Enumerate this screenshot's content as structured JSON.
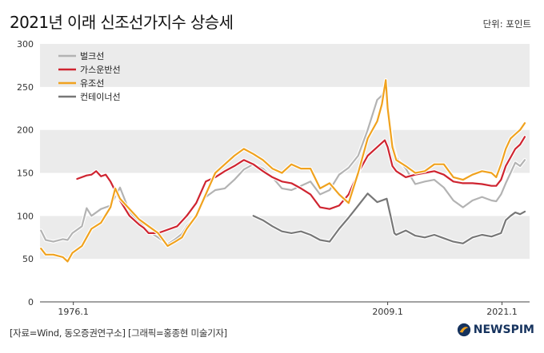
{
  "header": {
    "title": "2021년 이래 신조선가지수 상승세",
    "unit_label": "단위: 포인트"
  },
  "footer": {
    "source": "[자료=Wind, 동오증권연구소] [그래픽=홍종현 미술기자]",
    "brand": "NEWSPIM"
  },
  "chart_data": {
    "type": "line",
    "title": "2021년 이래 신조선가지수 상승세",
    "xlabel": "",
    "ylabel": "",
    "xlim": [
      1972.6,
      2024.0
    ],
    "ylim": [
      0,
      300
    ],
    "yticks": [
      0,
      50,
      100,
      150,
      200,
      250,
      300
    ],
    "xtick_labels": [
      {
        "x": 1976.1,
        "label": "1976.1"
      },
      {
        "x": 2009.1,
        "label": "2009.1"
      },
      {
        "x": 2021.1,
        "label": "2021.1"
      }
    ],
    "grid": "alternating horizontal bands",
    "legend_position": "top-left",
    "series": [
      {
        "name": "벌크선",
        "color": "#b3b3b3",
        "points": [
          [
            1972.7,
            83
          ],
          [
            1973.2,
            72
          ],
          [
            1974.0,
            70
          ],
          [
            1975.0,
            73
          ],
          [
            1975.5,
            72
          ],
          [
            1976.0,
            80
          ],
          [
            1977.0,
            88
          ],
          [
            1977.5,
            109
          ],
          [
            1978.0,
            100
          ],
          [
            1979.0,
            108
          ],
          [
            1980.0,
            112
          ],
          [
            1981.0,
            133
          ],
          [
            1982.0,
            105
          ],
          [
            1983.0,
            93
          ],
          [
            1984.0,
            82
          ],
          [
            1985.0,
            75
          ],
          [
            1986.0,
            67
          ],
          [
            1986.8,
            73
          ],
          [
            1987.5,
            79
          ],
          [
            1988.0,
            88
          ],
          [
            1989.0,
            100
          ],
          [
            1990.0,
            122
          ],
          [
            1991.0,
            130
          ],
          [
            1992.0,
            132
          ],
          [
            1993.0,
            142
          ],
          [
            1994.0,
            154
          ],
          [
            1995.0,
            160
          ],
          [
            1996.0,
            155
          ],
          [
            1997.0,
            145
          ],
          [
            1998.0,
            132
          ],
          [
            1999.0,
            130
          ],
          [
            2000.0,
            135
          ],
          [
            2001.0,
            140
          ],
          [
            2002.0,
            125
          ],
          [
            2003.0,
            130
          ],
          [
            2004.0,
            148
          ],
          [
            2005.0,
            156
          ],
          [
            2006.0,
            170
          ],
          [
            2007.0,
            200
          ],
          [
            2008.0,
            235
          ],
          [
            2008.5,
            240
          ],
          [
            2008.8,
            250
          ],
          [
            2009.1,
            228
          ],
          [
            2009.6,
            185
          ],
          [
            2010.0,
            168
          ],
          [
            2011.0,
            155
          ],
          [
            2012.0,
            137
          ],
          [
            2013.0,
            140
          ],
          [
            2014.0,
            142
          ],
          [
            2015.0,
            133
          ],
          [
            2016.0,
            118
          ],
          [
            2017.0,
            110
          ],
          [
            2018.0,
            118
          ],
          [
            2019.0,
            122
          ],
          [
            2020.0,
            118
          ],
          [
            2020.5,
            117
          ],
          [
            2021.0,
            125
          ],
          [
            2021.5,
            138
          ],
          [
            2022.0,
            150
          ],
          [
            2022.5,
            162
          ],
          [
            2023.0,
            158
          ],
          [
            2023.5,
            165
          ]
        ]
      },
      {
        "name": "가스운반선",
        "color": "#cf2430",
        "points": [
          [
            1976.5,
            143
          ],
          [
            1977.5,
            147
          ],
          [
            1978.0,
            148
          ],
          [
            1978.5,
            152
          ],
          [
            1979.0,
            146
          ],
          [
            1979.5,
            148
          ],
          [
            1980.0,
            140
          ],
          [
            1981.0,
            118
          ],
          [
            1982.0,
            100
          ],
          [
            1983.0,
            90
          ],
          [
            1983.5,
            86
          ],
          [
            1984.0,
            80
          ],
          [
            1985.0,
            80
          ],
          [
            1986.0,
            84
          ],
          [
            1987.0,
            88
          ],
          [
            1988.0,
            100
          ],
          [
            1989.0,
            115
          ],
          [
            1990.0,
            140
          ],
          [
            1991.0,
            145
          ],
          [
            1992.0,
            152
          ],
          [
            1993.0,
            158
          ],
          [
            1994.0,
            165
          ],
          [
            1995.0,
            160
          ],
          [
            1996.0,
            152
          ],
          [
            1997.0,
            145
          ],
          [
            1998.0,
            140
          ],
          [
            1999.0,
            138
          ],
          [
            2000.0,
            132
          ],
          [
            2001.0,
            125
          ],
          [
            2002.0,
            110
          ],
          [
            2003.0,
            108
          ],
          [
            2004.0,
            112
          ],
          [
            2005.0,
            125
          ],
          [
            2006.0,
            150
          ],
          [
            2007.0,
            170
          ],
          [
            2008.0,
            180
          ],
          [
            2008.8,
            188
          ],
          [
            2009.1,
            180
          ],
          [
            2009.6,
            158
          ],
          [
            2010.0,
            152
          ],
          [
            2011.0,
            145
          ],
          [
            2012.0,
            148
          ],
          [
            2013.0,
            150
          ],
          [
            2014.0,
            152
          ],
          [
            2015.0,
            148
          ],
          [
            2016.0,
            140
          ],
          [
            2017.0,
            138
          ],
          [
            2018.0,
            138
          ],
          [
            2019.0,
            137
          ],
          [
            2020.0,
            135
          ],
          [
            2020.5,
            135
          ],
          [
            2021.0,
            142
          ],
          [
            2021.5,
            158
          ],
          [
            2022.0,
            168
          ],
          [
            2022.5,
            178
          ],
          [
            2023.0,
            183
          ],
          [
            2023.5,
            192
          ]
        ]
      },
      {
        "name": "유조선",
        "color": "#f0a21e",
        "points": [
          [
            1972.7,
            62
          ],
          [
            1973.2,
            55
          ],
          [
            1974.0,
            55
          ],
          [
            1975.0,
            52
          ],
          [
            1975.5,
            47
          ],
          [
            1976.0,
            57
          ],
          [
            1977.0,
            65
          ],
          [
            1977.5,
            75
          ],
          [
            1978.0,
            85
          ],
          [
            1979.0,
            92
          ],
          [
            1980.0,
            110
          ],
          [
            1980.5,
            132
          ],
          [
            1981.0,
            120
          ],
          [
            1982.0,
            108
          ],
          [
            1983.0,
            96
          ],
          [
            1984.0,
            88
          ],
          [
            1985.0,
            80
          ],
          [
            1986.0,
            65
          ],
          [
            1986.8,
            70
          ],
          [
            1987.5,
            75
          ],
          [
            1988.0,
            85
          ],
          [
            1989.0,
            100
          ],
          [
            1990.0,
            125
          ],
          [
            1991.0,
            150
          ],
          [
            1992.0,
            160
          ],
          [
            1993.0,
            170
          ],
          [
            1994.0,
            178
          ],
          [
            1995.0,
            172
          ],
          [
            1996.0,
            165
          ],
          [
            1997.0,
            155
          ],
          [
            1998.0,
            150
          ],
          [
            1999.0,
            160
          ],
          [
            2000.0,
            155
          ],
          [
            2001.0,
            155
          ],
          [
            2002.0,
            132
          ],
          [
            2003.0,
            138
          ],
          [
            2004.0,
            125
          ],
          [
            2005.0,
            115
          ],
          [
            2006.0,
            150
          ],
          [
            2007.0,
            190
          ],
          [
            2008.0,
            210
          ],
          [
            2008.5,
            230
          ],
          [
            2008.9,
            258
          ],
          [
            2009.1,
            225
          ],
          [
            2009.6,
            180
          ],
          [
            2010.0,
            165
          ],
          [
            2011.0,
            158
          ],
          [
            2012.0,
            150
          ],
          [
            2013.0,
            152
          ],
          [
            2014.0,
            160
          ],
          [
            2015.0,
            160
          ],
          [
            2016.0,
            145
          ],
          [
            2017.0,
            142
          ],
          [
            2018.0,
            148
          ],
          [
            2019.0,
            152
          ],
          [
            2020.0,
            150
          ],
          [
            2020.5,
            145
          ],
          [
            2021.0,
            160
          ],
          [
            2021.5,
            178
          ],
          [
            2022.0,
            190
          ],
          [
            2022.5,
            195
          ],
          [
            2023.0,
            200
          ],
          [
            2023.5,
            208
          ]
        ]
      },
      {
        "name": "컨테이너선",
        "color": "#777777",
        "points": [
          [
            1995.0,
            100
          ],
          [
            1996.0,
            95
          ],
          [
            1997.0,
            88
          ],
          [
            1998.0,
            82
          ],
          [
            1999.0,
            80
          ],
          [
            2000.0,
            82
          ],
          [
            2001.0,
            78
          ],
          [
            2002.0,
            72
          ],
          [
            2003.0,
            70
          ],
          [
            2004.0,
            85
          ],
          [
            2005.0,
            98
          ],
          [
            2006.0,
            112
          ],
          [
            2007.0,
            126
          ],
          [
            2008.0,
            116
          ],
          [
            2009.0,
            120
          ],
          [
            2009.4,
            100
          ],
          [
            2009.8,
            80
          ],
          [
            2010.0,
            78
          ],
          [
            2011.0,
            83
          ],
          [
            2012.0,
            77
          ],
          [
            2013.0,
            75
          ],
          [
            2014.0,
            78
          ],
          [
            2015.0,
            74
          ],
          [
            2016.0,
            70
          ],
          [
            2017.0,
            68
          ],
          [
            2018.0,
            75
          ],
          [
            2019.0,
            78
          ],
          [
            2020.0,
            76
          ],
          [
            2021.0,
            80
          ],
          [
            2021.5,
            95
          ],
          [
            2022.0,
            100
          ],
          [
            2022.5,
            104
          ],
          [
            2023.0,
            102
          ],
          [
            2023.5,
            105
          ]
        ]
      }
    ]
  }
}
